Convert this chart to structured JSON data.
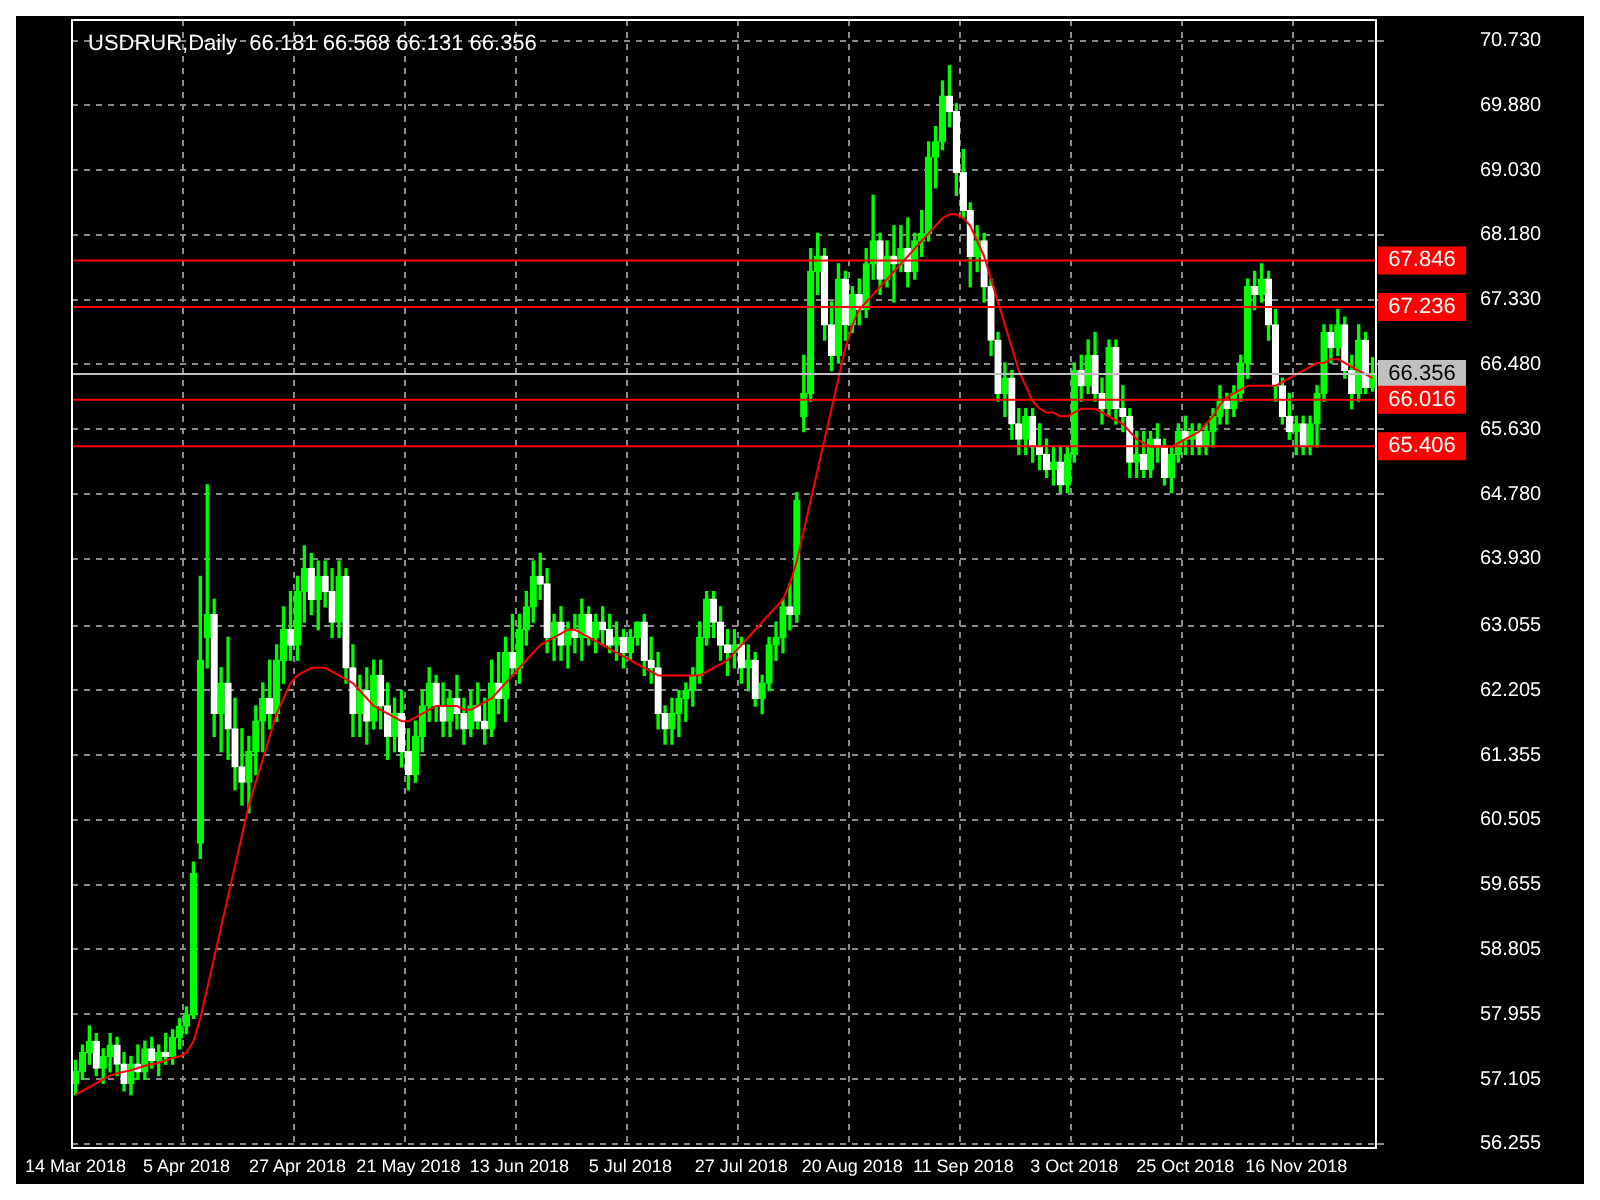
{
  "chart_data": {
    "type": "candlestick",
    "title": "USDRUR,Daily  66.181 66.568 66.131 66.356",
    "color": "#00ff00",
    "colors": [
      "#00ff00",
      "#00ff00",
      "#00ff00",
      "#ffffff",
      "#00ff00",
      "#00ff00",
      "#ffffff",
      "#ffffff",
      "#00ff00",
      "#ffffff",
      "#00ff00",
      "#ffffff",
      "#00ff00",
      "#ffffff",
      "#00ff00",
      "#00ff00",
      "#00ff00",
      "#00ff00",
      "#00ff00",
      "#00ff00",
      "#ffffff",
      "#00ff00",
      "#ffffff",
      "#ffffff",
      "#ffffff",
      "#00ff00",
      "#00ff00",
      "#00ff00",
      "#ffffff",
      "#00ff00",
      "#00ff00",
      "#ffffff",
      "#00ff00",
      "#00ff00",
      "#ffffff",
      "#00ff00",
      "#ffffff",
      "#ffffff",
      "#00ff00",
      "#ffffff",
      "#ffffff",
      "#00ff00",
      "#ffffff",
      "#00ff00",
      "#ffffff",
      "#ffffff",
      "#00ff00",
      "#ffffff",
      "#ffffff",
      "#00ff00",
      "#00ff00",
      "#00ff00",
      "#ffffff",
      "#ffffff",
      "#00ff00",
      "#ffffff",
      "#ffffff",
      "#00ff00",
      "#ffffff",
      "#ffffff",
      "#00ff00",
      "#ffffff",
      "#00ff00",
      "#ffffff",
      "#00ff00",
      "#00ff00",
      "#00ff00",
      "#ffffff",
      "#ffffff",
      "#00ff00",
      "#ffffff",
      "#00ff00",
      "#ffffff",
      "#00ff00",
      "#ffffff",
      "#00ff00",
      "#ffffff",
      "#ffffff",
      "#00ff00",
      "#ffffff",
      "#00ff00",
      "#00ff00",
      "#ffffff",
      "#ffffff",
      "#ffffff",
      "#ffffff",
      "#00ff00",
      "#00ff00",
      "#00ff00",
      "#00ff00",
      "#00ff00",
      "#00ff00",
      "#ffffff",
      "#ffffff",
      "#ffffff",
      "#00ff00",
      "#ffffff",
      "#00ff00",
      "#ffffff",
      "#00ff00",
      "#00ff00",
      "#00ff00",
      "#00ff00",
      "#ffffff",
      "#00ff00",
      "#00ff00",
      "#00ff00",
      "#00ff00",
      "#ffffff",
      "#ffffff",
      "#00ff00",
      "#ffffff",
      "#00ff00",
      "#ffffff",
      "#00ff00",
      "#00ff00",
      "#ffffff",
      "#00ff00",
      "#ffffff",
      "#00ff00",
      "#ffffff",
      "#00ff00",
      "#00ff00",
      "#00ff00",
      "#00ff00",
      "#00ff00",
      "#ffffff",
      "#ffffff",
      "#ffffff",
      "#ffffff",
      "#00ff00",
      "#ffffff",
      "#ffffff",
      "#ffffff",
      "#00ff00",
      "#ffffff",
      "#ffffff",
      "#00ff00",
      "#ffffff",
      "#ffffff",
      "#ffffff",
      "#00ff00",
      "#ffffff",
      "#00ff00",
      "#00ff00",
      "#ffffff",
      "#00ff00",
      "#ffffff",
      "#ffffff",
      "#00ff00",
      "#ffffff",
      "#ffffff",
      "#ffffff",
      "#00ff00",
      "#ffffff",
      "#00ff00",
      "#ffffff",
      "#ffffff",
      "#00ff00",
      "#00ff00",
      "#ffffff",
      "#00ff00",
      "#ffffff",
      "#00ff00",
      "#00ff00",
      "#00ff00",
      "#ffffff",
      "#00ff00",
      "#00ff00",
      "#00ff00",
      "#ffffff",
      "#00ff00",
      "#ffffff",
      "#ffffff",
      "#ffffff",
      "#ffffff",
      "#00ff00",
      "#ffffff",
      "#00ff00",
      "#00ff00",
      "#00ff00",
      "#ffffff",
      "#00ff00",
      "#ffffff",
      "#ffffff",
      "#00ff00",
      "#ffffff",
      "#00ff00"
    ],
    "categories": [
      "14 Mar 2018",
      null,
      null,
      null,
      null,
      null,
      null,
      null,
      null,
      null,
      null,
      null,
      null,
      null,
      null,
      null,
      "5 Apr 2018",
      null,
      null,
      null,
      null,
      null,
      null,
      null,
      null,
      null,
      null,
      null,
      null,
      null,
      null,
      null,
      "27 Apr 2018",
      null,
      null,
      null,
      null,
      null,
      null,
      null,
      null,
      null,
      null,
      null,
      null,
      null,
      null,
      null,
      "21 May 2018",
      null,
      null,
      null,
      null,
      null,
      null,
      null,
      null,
      null,
      null,
      null,
      null,
      null,
      null,
      null,
      "13 Jun 2018",
      null,
      null,
      null,
      null,
      null,
      null,
      null,
      null,
      null,
      null,
      null,
      null,
      null,
      null,
      null,
      "5 Jul 2018",
      null,
      null,
      null,
      null,
      null,
      null,
      null,
      null,
      null,
      null,
      null,
      null,
      null,
      null,
      null,
      "27 Jul 2018",
      null,
      null,
      null,
      null,
      null,
      null,
      null,
      null,
      null,
      null,
      null,
      null,
      null,
      null,
      null,
      "20 Aug 2018",
      null,
      null,
      null,
      null,
      null,
      null,
      null,
      null,
      null,
      null,
      null,
      null,
      null,
      null,
      null,
      "11 Sep 2018",
      null,
      null,
      null,
      null,
      null,
      null,
      null,
      null,
      null,
      null,
      null,
      null,
      null,
      null,
      null,
      "3 Oct 2018",
      null,
      null,
      null,
      null,
      null,
      null,
      null,
      null,
      null,
      null,
      null,
      null,
      null,
      null,
      null,
      "25 Oct 2018",
      null,
      null,
      null,
      null,
      null,
      null,
      null,
      null,
      null,
      null,
      null,
      null,
      null,
      null,
      null,
      "16 Nov 2018",
      null,
      null,
      null,
      null,
      null,
      null,
      null,
      null,
      null,
      null,
      null
    ],
    "ohlc": [
      [
        57.05,
        57.35,
        56.9,
        57.2
      ],
      [
        57.2,
        57.55,
        57.1,
        57.45
      ],
      [
        57.45,
        57.8,
        57.3,
        57.6
      ],
      [
        57.6,
        57.7,
        57.15,
        57.25
      ],
      [
        57.25,
        57.5,
        57.05,
        57.4
      ],
      [
        57.4,
        57.7,
        57.2,
        57.55
      ],
      [
        57.55,
        57.65,
        57.15,
        57.3
      ],
      [
        57.3,
        57.45,
        56.95,
        57.05
      ],
      [
        57.05,
        57.4,
        56.9,
        57.3
      ],
      [
        57.3,
        57.55,
        57.1,
        57.2
      ],
      [
        57.2,
        57.6,
        57.1,
        57.5
      ],
      [
        57.5,
        57.65,
        57.25,
        57.35
      ],
      [
        57.35,
        57.55,
        57.15,
        57.45
      ],
      [
        57.45,
        57.7,
        57.3,
        57.4
      ],
      [
        57.4,
        57.75,
        57.3,
        57.65
      ],
      [
        57.65,
        57.9,
        57.5,
        57.8
      ],
      [
        57.8,
        58.05,
        57.7,
        57.95
      ],
      [
        57.95,
        59.95,
        57.9,
        59.8
      ],
      [
        60.2,
        63.7,
        60.0,
        62.6
      ],
      [
        62.9,
        64.9,
        62.5,
        63.2
      ],
      [
        63.2,
        63.4,
        61.6,
        61.9
      ],
      [
        61.9,
        62.5,
        61.4,
        62.3
      ],
      [
        62.3,
        62.9,
        61.3,
        61.7
      ],
      [
        61.7,
        62.1,
        60.9,
        61.2
      ],
      [
        61.2,
        61.7,
        60.7,
        61.0
      ],
      [
        61.0,
        61.6,
        60.6,
        61.4
      ],
      [
        61.4,
        62.0,
        61.1,
        61.8
      ],
      [
        61.8,
        62.3,
        61.4,
        62.1
      ],
      [
        62.1,
        62.6,
        61.7,
        61.9
      ],
      [
        61.9,
        62.8,
        61.8,
        62.6
      ],
      [
        62.6,
        63.3,
        62.3,
        63.0
      ],
      [
        63.0,
        63.5,
        62.6,
        62.8
      ],
      [
        62.8,
        63.7,
        62.6,
        63.5
      ],
      [
        63.5,
        64.1,
        63.1,
        63.8
      ],
      [
        63.8,
        64.0,
        63.2,
        63.4
      ],
      [
        63.4,
        63.9,
        63.0,
        63.7
      ],
      [
        63.7,
        63.9,
        63.3,
        63.5
      ],
      [
        63.5,
        63.8,
        62.9,
        63.1
      ],
      [
        63.1,
        63.9,
        62.9,
        63.7
      ],
      [
        63.7,
        63.8,
        62.3,
        62.5
      ],
      [
        62.5,
        62.8,
        61.6,
        61.9
      ],
      [
        61.9,
        62.4,
        61.6,
        62.2
      ],
      [
        62.2,
        62.5,
        61.5,
        61.8
      ],
      [
        61.8,
        62.6,
        61.7,
        62.4
      ],
      [
        62.4,
        62.6,
        61.7,
        62.0
      ],
      [
        62.0,
        62.3,
        61.3,
        61.6
      ],
      [
        61.6,
        62.1,
        61.4,
        61.9
      ],
      [
        61.9,
        62.2,
        61.2,
        61.4
      ],
      [
        61.4,
        61.7,
        60.9,
        61.1
      ],
      [
        61.1,
        61.8,
        61.0,
        61.6
      ],
      [
        61.6,
        62.2,
        61.4,
        62.0
      ],
      [
        62.0,
        62.5,
        61.8,
        62.3
      ],
      [
        62.3,
        62.4,
        61.8,
        62.0
      ],
      [
        62.0,
        62.3,
        61.6,
        61.8
      ],
      [
        61.8,
        62.2,
        61.6,
        62.1
      ],
      [
        62.1,
        62.4,
        61.7,
        61.9
      ],
      [
        61.9,
        62.1,
        61.5,
        61.7
      ],
      [
        61.7,
        62.2,
        61.6,
        62.0
      ],
      [
        62.0,
        62.3,
        61.7,
        61.8
      ],
      [
        61.8,
        62.1,
        61.5,
        61.7
      ],
      [
        61.7,
        62.6,
        61.6,
        62.3
      ],
      [
        62.3,
        62.7,
        61.9,
        62.1
      ],
      [
        62.1,
        62.9,
        61.8,
        62.7
      ],
      [
        62.7,
        63.2,
        62.4,
        62.5
      ],
      [
        62.5,
        63.2,
        62.3,
        63.0
      ],
      [
        63.0,
        63.5,
        62.8,
        63.3
      ],
      [
        63.3,
        63.9,
        63.1,
        63.7
      ],
      [
        63.7,
        64.0,
        63.4,
        63.6
      ],
      [
        63.6,
        63.8,
        62.7,
        62.9
      ],
      [
        62.9,
        63.2,
        62.6,
        63.1
      ],
      [
        63.1,
        63.3,
        62.6,
        62.8
      ],
      [
        62.8,
        63.1,
        62.5,
        63.0
      ],
      [
        63.0,
        63.2,
        62.7,
        62.9
      ],
      [
        62.9,
        63.4,
        62.6,
        63.2
      ],
      [
        63.2,
        63.3,
        62.8,
        62.9
      ],
      [
        62.9,
        63.2,
        62.7,
        63.1
      ],
      [
        63.1,
        63.3,
        62.8,
        63.0
      ],
      [
        63.0,
        63.2,
        62.7,
        62.8
      ],
      [
        62.8,
        63.1,
        62.6,
        62.9
      ],
      [
        62.9,
        63.0,
        62.5,
        62.7
      ],
      [
        62.7,
        63.0,
        62.6,
        62.9
      ],
      [
        62.9,
        63.1,
        62.8,
        63.1
      ],
      [
        63.1,
        63.2,
        62.4,
        62.6
      ],
      [
        62.6,
        62.9,
        62.3,
        62.5
      ],
      [
        62.5,
        62.7,
        61.7,
        61.9
      ],
      [
        61.9,
        62.0,
        61.5,
        61.7
      ],
      [
        61.7,
        62.1,
        61.5,
        61.9
      ],
      [
        61.9,
        62.2,
        61.6,
        62.1
      ],
      [
        62.1,
        62.3,
        61.8,
        62.2
      ],
      [
        62.2,
        62.5,
        62.0,
        62.4
      ],
      [
        62.4,
        63.1,
        62.3,
        62.9
      ],
      [
        62.9,
        63.5,
        62.8,
        63.4
      ],
      [
        63.4,
        63.5,
        62.9,
        63.1
      ],
      [
        63.1,
        63.3,
        62.6,
        62.8
      ],
      [
        62.8,
        63.0,
        62.4,
        62.7
      ],
      [
        62.7,
        63.0,
        62.5,
        62.8
      ],
      [
        62.8,
        62.9,
        62.3,
        62.5
      ],
      [
        62.5,
        62.8,
        62.2,
        62.6
      ],
      [
        62.6,
        62.7,
        62.0,
        62.1
      ],
      [
        62.1,
        62.4,
        61.9,
        62.3
      ],
      [
        62.3,
        62.9,
        62.2,
        62.8
      ],
      [
        62.8,
        63.1,
        62.6,
        62.9
      ],
      [
        62.9,
        63.4,
        62.7,
        63.3
      ],
      [
        63.3,
        63.6,
        63.0,
        63.2
      ],
      [
        63.2,
        64.8,
        63.1,
        64.7
      ],
      [
        65.8,
        66.6,
        65.6,
        66.1
      ],
      [
        66.1,
        68.0,
        66.0,
        67.7
      ],
      [
        67.7,
        68.2,
        67.4,
        67.9
      ],
      [
        67.9,
        68.0,
        66.8,
        67.0
      ],
      [
        67.0,
        67.3,
        66.4,
        66.6
      ],
      [
        66.6,
        67.8,
        66.5,
        67.6
      ],
      [
        67.6,
        67.7,
        66.8,
        67.0
      ],
      [
        67.0,
        67.5,
        66.9,
        67.4
      ],
      [
        67.4,
        67.6,
        67.0,
        67.2
      ],
      [
        67.2,
        68.0,
        67.1,
        67.8
      ],
      [
        67.8,
        68.7,
        67.6,
        68.1
      ],
      [
        68.1,
        68.2,
        67.4,
        67.6
      ],
      [
        67.6,
        68.1,
        67.5,
        67.9
      ],
      [
        67.9,
        68.3,
        67.3,
        67.8
      ],
      [
        67.8,
        68.3,
        67.7,
        68.0
      ],
      [
        68.0,
        68.4,
        67.5,
        67.7
      ],
      [
        67.7,
        68.2,
        67.6,
        68.1
      ],
      [
        68.1,
        68.5,
        67.9,
        68.2
      ],
      [
        68.2,
        69.4,
        68.1,
        69.2
      ],
      [
        69.2,
        69.6,
        68.8,
        69.4
      ],
      [
        69.4,
        70.2,
        69.3,
        70.0
      ],
      [
        70.0,
        70.4,
        69.6,
        69.8
      ],
      [
        69.8,
        69.9,
        68.7,
        69.0
      ],
      [
        69.0,
        69.3,
        68.4,
        68.5
      ],
      [
        68.5,
        68.6,
        67.5,
        67.9
      ],
      [
        67.9,
        68.3,
        67.7,
        68.1
      ],
      [
        68.1,
        68.2,
        67.3,
        67.5
      ],
      [
        67.5,
        67.6,
        66.6,
        66.8
      ],
      [
        66.8,
        66.9,
        66.0,
        66.1
      ],
      [
        66.1,
        66.5,
        65.8,
        66.3
      ],
      [
        66.3,
        66.4,
        65.5,
        65.7
      ],
      [
        65.7,
        65.9,
        65.3,
        65.5
      ],
      [
        65.5,
        65.9,
        65.3,
        65.8
      ],
      [
        65.8,
        65.9,
        65.2,
        65.4
      ],
      [
        65.4,
        65.7,
        65.1,
        65.3
      ],
      [
        65.3,
        65.5,
        65.0,
        65.1
      ],
      [
        65.1,
        65.4,
        64.9,
        65.2
      ],
      [
        65.2,
        65.4,
        64.8,
        64.9
      ],
      [
        64.9,
        65.4,
        64.8,
        65.3
      ],
      [
        65.3,
        66.5,
        65.2,
        66.4
      ],
      [
        66.4,
        66.6,
        66.0,
        66.2
      ],
      [
        66.2,
        66.8,
        66.1,
        66.6
      ],
      [
        66.6,
        66.9,
        66.0,
        66.1
      ],
      [
        66.1,
        66.3,
        65.7,
        65.9
      ],
      [
        65.9,
        66.8,
        65.8,
        66.7
      ],
      [
        66.7,
        66.8,
        65.7,
        65.9
      ],
      [
        65.9,
        66.2,
        65.6,
        65.8
      ],
      [
        65.8,
        65.9,
        65.0,
        65.2
      ],
      [
        65.2,
        65.6,
        65.0,
        65.3
      ],
      [
        65.3,
        65.6,
        65.0,
        65.1
      ],
      [
        65.1,
        65.6,
        65.0,
        65.5
      ],
      [
        65.5,
        65.7,
        65.2,
        65.4
      ],
      [
        65.4,
        65.5,
        64.9,
        65.0
      ],
      [
        65.0,
        65.4,
        64.8,
        65.3
      ],
      [
        65.3,
        65.7,
        65.2,
        65.6
      ],
      [
        65.6,
        65.8,
        65.3,
        65.5
      ],
      [
        65.5,
        65.7,
        65.3,
        65.6
      ],
      [
        65.6,
        65.7,
        65.3,
        65.4
      ],
      [
        65.4,
        65.7,
        65.3,
        65.6
      ],
      [
        65.6,
        65.9,
        65.4,
        65.8
      ],
      [
        65.8,
        66.2,
        65.7,
        66.0
      ],
      [
        66.0,
        66.1,
        65.7,
        65.9
      ],
      [
        65.9,
        66.2,
        65.8,
        66.1
      ],
      [
        66.1,
        66.6,
        66.0,
        66.5
      ],
      [
        66.5,
        67.6,
        66.3,
        67.5
      ],
      [
        67.5,
        67.7,
        67.2,
        67.4
      ],
      [
        67.4,
        67.8,
        67.3,
        67.6
      ],
      [
        67.6,
        67.7,
        66.8,
        67.0
      ],
      [
        67.0,
        67.2,
        66.0,
        66.2
      ],
      [
        66.2,
        66.3,
        65.7,
        65.8
      ],
      [
        65.8,
        66.1,
        65.5,
        65.6
      ],
      [
        65.6,
        65.8,
        65.3,
        65.7
      ],
      [
        65.7,
        65.8,
        65.3,
        65.4
      ],
      [
        65.4,
        65.8,
        65.3,
        65.7
      ],
      [
        65.7,
        66.2,
        65.4,
        66.1
      ],
      [
        66.1,
        67.0,
        66.0,
        66.9
      ],
      [
        66.9,
        67.0,
        66.5,
        66.7
      ],
      [
        66.7,
        67.2,
        66.6,
        67.0
      ],
      [
        67.0,
        67.1,
        66.3,
        66.4
      ],
      [
        66.4,
        66.6,
        65.9,
        66.1
      ],
      [
        66.1,
        67.0,
        66.0,
        66.8
      ],
      [
        66.8,
        66.9,
        66.1,
        66.18
      ],
      [
        66.181,
        66.568,
        66.131,
        66.356
      ]
    ],
    "series": [
      {
        "type": "line",
        "color": "#ff0000",
        "values": [
          56.9,
          56.95,
          57.0,
          57.05,
          57.1,
          57.15,
          57.18,
          57.2,
          57.22,
          57.25,
          57.28,
          57.3,
          57.32,
          57.35,
          57.38,
          57.4,
          57.45,
          57.6,
          57.9,
          58.3,
          58.7,
          59.1,
          59.5,
          59.9,
          60.3,
          60.7,
          61.0,
          61.3,
          61.6,
          61.9,
          62.1,
          62.3,
          62.4,
          62.45,
          62.5,
          62.5,
          62.5,
          62.45,
          62.4,
          62.35,
          62.3,
          62.2,
          62.1,
          62.0,
          61.95,
          61.9,
          61.85,
          61.8,
          61.8,
          61.85,
          61.9,
          61.95,
          62.0,
          62.0,
          62.0,
          62.0,
          61.95,
          61.95,
          62.0,
          62.05,
          62.1,
          62.2,
          62.3,
          62.4,
          62.5,
          62.6,
          62.7,
          62.8,
          62.85,
          62.9,
          62.95,
          63.0,
          63.0,
          62.95,
          62.9,
          62.85,
          62.8,
          62.75,
          62.7,
          62.65,
          62.6,
          62.55,
          62.5,
          62.45,
          62.4,
          62.4,
          62.4,
          62.4,
          62.4,
          62.4,
          62.4,
          62.45,
          62.5,
          62.55,
          62.6,
          62.7,
          62.8,
          62.9,
          63.0,
          63.1,
          63.2,
          63.3,
          63.4,
          63.6,
          63.9,
          64.3,
          64.7,
          65.1,
          65.5,
          65.9,
          66.3,
          66.7,
          67.0,
          67.2,
          67.3,
          67.4,
          67.5,
          67.6,
          67.7,
          67.8,
          67.9,
          68.0,
          68.1,
          68.2,
          68.3,
          68.4,
          68.45,
          68.45,
          68.4,
          68.3,
          68.1,
          67.9,
          67.6,
          67.3,
          67.0,
          66.7,
          66.4,
          66.2,
          66.0,
          65.9,
          65.85,
          65.85,
          65.8,
          65.8,
          65.85,
          65.9,
          65.9,
          65.9,
          65.85,
          65.8,
          65.75,
          65.7,
          65.6,
          65.5,
          65.45,
          65.4,
          65.4,
          65.4,
          65.4,
          65.45,
          65.5,
          65.55,
          65.6,
          65.7,
          65.8,
          65.95,
          66.05,
          66.1,
          66.15,
          66.2,
          66.2,
          66.2,
          66.2,
          66.2,
          66.25,
          66.3,
          66.35,
          66.4,
          66.45,
          66.5,
          66.5,
          66.55,
          66.55,
          66.5,
          66.45,
          66.4,
          66.35,
          66.3
        ]
      }
    ],
    "ylim": [
      56.2,
      71.0
    ],
    "yticks": [
      {
        "value": 70.73,
        "label": "70.730"
      },
      {
        "value": 69.88,
        "label": "69.880"
      },
      {
        "value": 69.03,
        "label": "69.030"
      },
      {
        "value": 68.18,
        "label": "68.180"
      },
      {
        "value": 67.33,
        "label": "67.330"
      },
      {
        "value": 66.48,
        "label": "66.480"
      },
      {
        "value": 65.63,
        "label": "65.630"
      },
      {
        "value": 64.78,
        "label": "64.780"
      },
      {
        "value": 63.93,
        "label": "63.930"
      },
      {
        "value": 63.055,
        "label": "63.055"
      },
      {
        "value": 62.205,
        "label": "62.205"
      },
      {
        "value": 61.355,
        "label": "61.355"
      },
      {
        "value": 60.505,
        "label": "60.505"
      },
      {
        "value": 59.655,
        "label": "59.655"
      },
      {
        "value": 58.805,
        "label": "58.805"
      },
      {
        "value": 57.955,
        "label": "57.955"
      },
      {
        "value": 57.105,
        "label": "57.105"
      },
      {
        "value": 56.255,
        "label": "56.255"
      }
    ],
    "grid": true,
    "ref_lines": [
      {
        "axis": "y",
        "value": 67.846,
        "label": "67.846",
        "color": "#ff0000"
      },
      {
        "axis": "y",
        "value": 67.236,
        "label": "67.236",
        "color": "#ff0000"
      },
      {
        "axis": "y",
        "value": 66.356,
        "label": "66.356",
        "color": "#c0c0c0"
      },
      {
        "axis": "y",
        "value": 66.016,
        "label": "66.016",
        "color": "#ff0000"
      },
      {
        "axis": "y",
        "value": 65.406,
        "label": "65.406",
        "color": "#ff0000"
      }
    ]
  }
}
